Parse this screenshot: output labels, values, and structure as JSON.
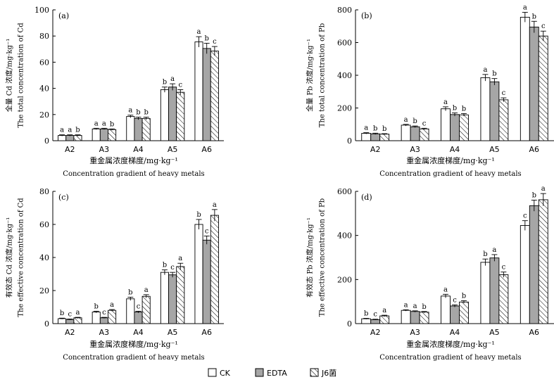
{
  "legend": {
    "items": [
      {
        "name": "CK",
        "style": "open"
      },
      {
        "name": "EDTA",
        "style": "gray"
      },
      {
        "name": "J6菌",
        "style": "hatch"
      }
    ]
  },
  "colors": {
    "open": "#ffffff",
    "gray": "#a6a6a6",
    "stroke": "#000000"
  },
  "chart_data": [
    {
      "type": "bar",
      "panel_label": "(a)",
      "ylabel_cn": "全量 Cd 浓度/mg·kg⁻¹",
      "ylabel_en": "The total concentration of Cd",
      "xlabel_cn": "重金属浓度梯度/mg·kg⁻¹",
      "xlabel_en": "Concentration gradient of heavy metals",
      "categories": [
        "A2",
        "A3",
        "A4",
        "A5",
        "A6"
      ],
      "ylim": [
        0,
        100
      ],
      "yticks": [
        0,
        20,
        40,
        60,
        80,
        100
      ],
      "series": [
        {
          "name": "CK",
          "values": [
            4,
            9,
            18.5,
            39,
            75.5
          ],
          "errors": [
            0.5,
            0.5,
            1,
            2,
            4
          ],
          "letters": [
            "a",
            "a",
            "a",
            "b",
            "a"
          ]
        },
        {
          "name": "EDTA",
          "values": [
            4,
            9,
            17,
            41,
            70.5
          ],
          "errors": [
            0.5,
            0.5,
            1,
            2.5,
            4
          ],
          "letters": [
            "a",
            "a",
            "b",
            "a",
            "b"
          ]
        },
        {
          "name": "J6菌",
          "values": [
            4,
            8.5,
            17,
            37,
            68.5
          ],
          "errors": [
            0.5,
            0.5,
            1,
            2,
            3.5
          ],
          "letters": [
            "b",
            "b",
            "b",
            "c",
            "c"
          ]
        }
      ]
    },
    {
      "type": "bar",
      "panel_label": "(b)",
      "ylabel_cn": "全量 Pb 浓度/mg·kg⁻¹",
      "ylabel_en": "The total concentration of Pb",
      "categories": [
        "A2",
        "A3",
        "A4",
        "A5",
        "A6"
      ],
      "ylim": [
        0,
        800
      ],
      "yticks": [
        0,
        200,
        400,
        600,
        800
      ],
      "series": [
        {
          "name": "CK",
          "values": [
            45,
            95,
            195,
            385,
            755
          ],
          "errors": [
            4,
            5,
            12,
            20,
            30
          ],
          "letters": [
            "a",
            "a",
            "a",
            "a",
            "a"
          ]
        },
        {
          "name": "EDTA",
          "values": [
            42,
            85,
            160,
            360,
            695
          ],
          "errors": [
            4,
            5,
            10,
            20,
            35
          ],
          "letters": [
            "b",
            "b",
            "b",
            "b",
            "b"
          ]
        },
        {
          "name": "J6菌",
          "values": [
            40,
            72,
            158,
            250,
            640
          ],
          "errors": [
            3,
            4,
            8,
            12,
            30
          ],
          "letters": [
            "b",
            "c",
            "b",
            "c",
            "c"
          ]
        }
      ]
    },
    {
      "type": "bar",
      "panel_label": "(c)",
      "ylabel_cn": "有效态 Cd 浓度/mg·kg⁻¹",
      "ylabel_en": "The effective concentration of Cd",
      "xlabel_cn": "重金属浓度梯度/mg·kg⁻¹",
      "xlabel_en": "Concentration gradient of heavy metals",
      "categories": [
        "A2",
        "A3",
        "A4",
        "A5",
        "A6"
      ],
      "ylim": [
        0,
        80
      ],
      "yticks": [
        0,
        20,
        40,
        60,
        80
      ],
      "series": [
        {
          "name": "CK",
          "values": [
            3,
            7,
            15,
            31,
            60
          ],
          "errors": [
            0.3,
            0.5,
            1,
            1.5,
            3
          ],
          "letters": [
            "b",
            "b",
            "b",
            "b",
            "b"
          ]
        },
        {
          "name": "EDTA",
          "values": [
            2.5,
            3.5,
            7,
            29.5,
            50.5
          ],
          "errors": [
            0.3,
            0.3,
            0.5,
            1.5,
            2.5
          ],
          "letters": [
            "c",
            "c",
            "c",
            "c",
            "c"
          ]
        },
        {
          "name": "J6菌",
          "values": [
            3.5,
            8,
            16.5,
            34.5,
            65.5
          ],
          "errors": [
            0.3,
            0.5,
            1,
            2,
            3.5
          ],
          "letters": [
            "a",
            "a",
            "a",
            "a",
            "a"
          ]
        }
      ]
    },
    {
      "type": "bar",
      "panel_label": "(d)",
      "ylabel_cn": "有效态 Pb 浓度/mg·kg⁻¹",
      "ylabel_en": "The effective concentration of Pb",
      "xlabel_cn": "重金属浓度梯度/mg·kg⁻¹",
      "xlabel_en": "Concentration gradient of heavy metals",
      "categories": [
        "A2",
        "A3",
        "A4",
        "A5",
        "A6"
      ],
      "ylim": [
        0,
        600
      ],
      "yticks": [
        0,
        200,
        400,
        600
      ],
      "series": [
        {
          "name": "CK",
          "values": [
            22,
            60,
            125,
            278,
            445
          ],
          "errors": [
            2,
            3,
            8,
            15,
            22
          ],
          "letters": [
            "b",
            "a",
            "a",
            "b",
            "c"
          ]
        },
        {
          "name": "EDTA",
          "values": [
            18,
            55,
            80,
            298,
            535
          ],
          "errors": [
            2,
            3,
            5,
            15,
            25
          ],
          "letters": [
            "c",
            "a",
            "c",
            "a",
            "b"
          ]
        },
        {
          "name": "J6菌",
          "values": [
            35,
            52,
            98,
            222,
            562
          ],
          "errors": [
            3,
            3,
            6,
            12,
            28
          ],
          "letters": [
            "a",
            "b",
            "b",
            "c",
            "a"
          ]
        }
      ]
    }
  ]
}
